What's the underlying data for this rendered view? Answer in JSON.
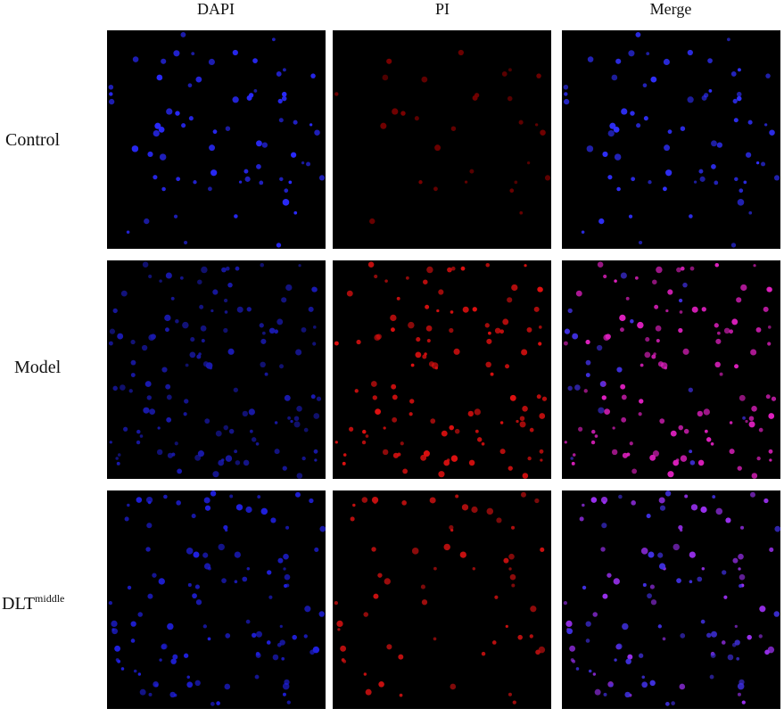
{
  "columns": [
    "DAPI",
    "PI",
    "Merge"
  ],
  "rows": [
    {
      "label": "Control"
    },
    {
      "label": "Model"
    },
    {
      "label": "DLT",
      "superscript": "middle"
    }
  ]
}
